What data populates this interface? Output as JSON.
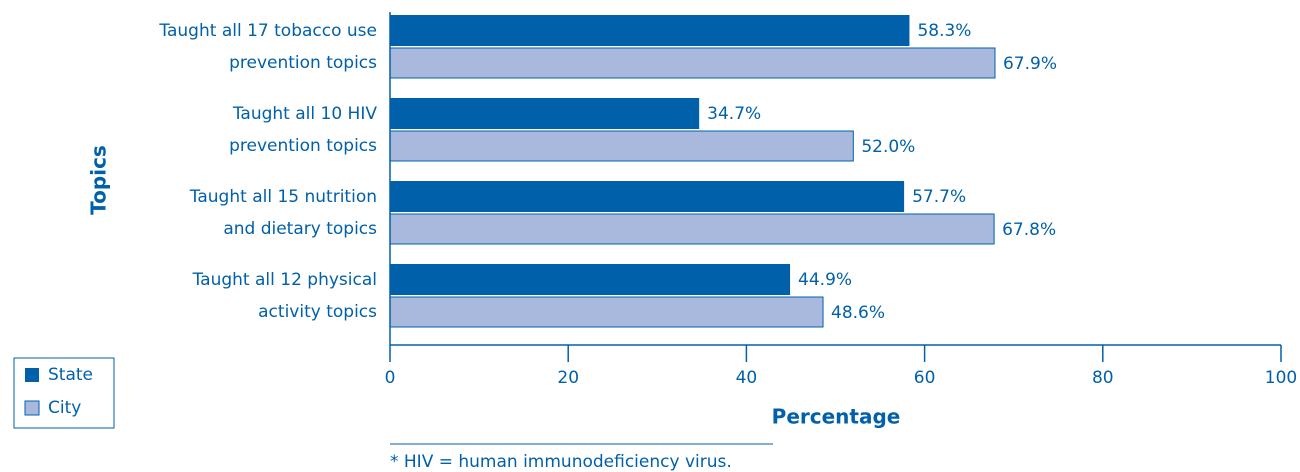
{
  "chart_data": {
    "type": "bar",
    "orientation": "horizontal",
    "x_label": "Percentage",
    "y_label": "Topics",
    "categories": [
      [
        "Taught all 17 tobacco use",
        "prevention topics"
      ],
      [
        "Taught all 10 HIV",
        "prevention topics"
      ],
      [
        "Taught all 15 nutrition",
        "and dietary topics"
      ],
      [
        "Taught all 12 physical",
        "activity topics"
      ]
    ],
    "series": [
      {
        "name": "State",
        "color": "#0060a9",
        "values": [
          58.3,
          34.7,
          57.7,
          44.9
        ],
        "value_labels": [
          "58.3%",
          "34.7%",
          "57.7%",
          "44.9%"
        ]
      },
      {
        "name": "City",
        "color": "#a9b9de",
        "values": [
          67.9,
          52.0,
          67.8,
          48.6
        ],
        "value_labels": [
          "67.9%",
          "52.0%",
          "67.8%",
          "48.6%"
        ]
      }
    ],
    "xlim": [
      0,
      100
    ],
    "xticks": [
      0,
      20,
      40,
      60,
      80,
      100
    ],
    "legend": "bottom-left",
    "footnote": "* HIV = human immunodeficiency virus."
  }
}
